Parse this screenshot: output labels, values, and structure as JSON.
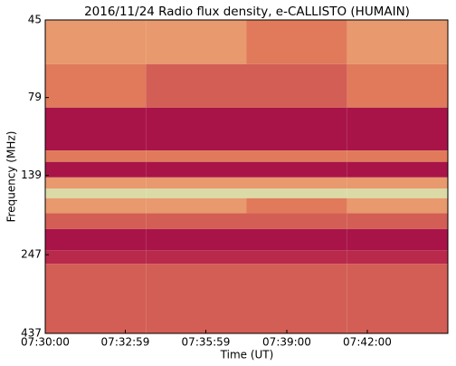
{
  "chart_data": {
    "type": "heatmap",
    "title": "2016/11/24  Radio flux density, e-CALLISTO (HUMAIN)",
    "x_label": "Time (UT)",
    "y_label": "Frequency (MHz)",
    "x_bins": [
      27000,
      27225,
      27450,
      27675,
      27900
    ],
    "y_bins": [
      45,
      62,
      85,
      116,
      126,
      141,
      153,
      164,
      183,
      205,
      239,
      264,
      437
    ],
    "values": [
      [
        6,
        6,
        5,
        6
      ],
      [
        5,
        4,
        4,
        5
      ],
      [
        1,
        1,
        1,
        1
      ],
      [
        5,
        5,
        5,
        5
      ],
      [
        1,
        1,
        1,
        1
      ],
      [
        6,
        6,
        6,
        6
      ],
      [
        9,
        9,
        9,
        9
      ],
      [
        6,
        6,
        5,
        6
      ],
      [
        4,
        4,
        4,
        4
      ],
      [
        1,
        1,
        1,
        1
      ],
      [
        2,
        2,
        2,
        2
      ],
      [
        4,
        4,
        4,
        4
      ]
    ],
    "zlim": [
      0,
      10
    ],
    "colors": [
      "#9a0045",
      "#c0334d",
      "#e07a5a",
      "#f4c88a",
      "#c8e6b8"
    ],
    "xlim": [
      27000,
      27900
    ],
    "xticks": [
      {
        "value": 27000,
        "label": "07:30:00"
      },
      {
        "value": 27179,
        "label": "07:32:59"
      },
      {
        "value": 27359,
        "label": "07:35:59"
      },
      {
        "value": 27540,
        "label": "07:39:00"
      },
      {
        "value": 27720,
        "label": "07:42:00"
      }
    ],
    "ylim": [
      45,
      437
    ],
    "y_scale": "log",
    "y_inverted": true,
    "yticks": [
      45,
      79,
      139,
      247,
      437
    ]
  }
}
